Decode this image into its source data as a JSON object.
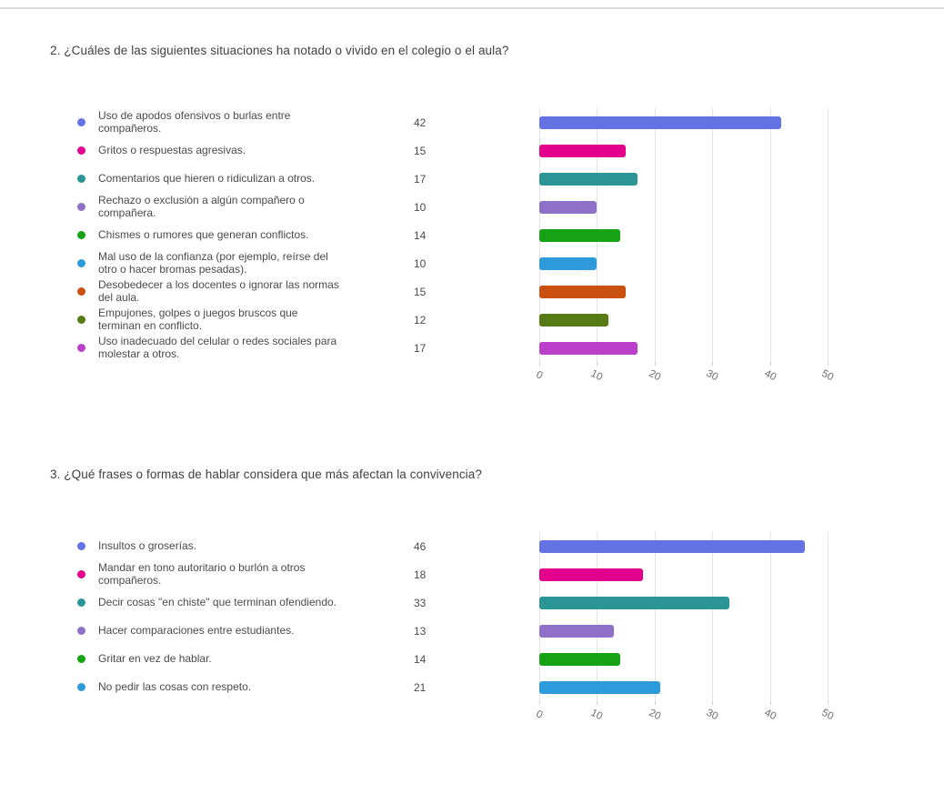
{
  "page": {
    "background": "#ffffff",
    "top_divider_color": "#dadada"
  },
  "chart_data": [
    {
      "type": "bar",
      "orientation": "horizontal",
      "question": "2. ¿Cuáles de las siguientes situaciones ha notado o vivido en el colegio o el aula?",
      "legend_position": "left",
      "grid": true,
      "x_ticks": [
        0,
        10,
        20,
        30,
        40,
        50
      ],
      "xlim": [
        0,
        55
      ],
      "items": [
        {
          "label": "Uso de apodos ofensivos o burlas entre compañeros.",
          "value": 42,
          "color": "#6373E3"
        },
        {
          "label": "Gritos o respuestas agresivas.",
          "value": 15,
          "color": "#E3008C"
        },
        {
          "label": "Comentarios que hieren o ridiculizan a otros.",
          "value": 17,
          "color": "#2A9594"
        },
        {
          "label": "Rechazo o exclusión a algún compañero o compañera.",
          "value": 10,
          "color": "#8E70C8"
        },
        {
          "label": "Chismes o rumores que generan conflictos.",
          "value": 14,
          "color": "#16A316"
        },
        {
          "label": "Mal uso de la confianza (por ejemplo, reírse del otro o hacer bromas pesadas).",
          "value": 10,
          "color": "#2D9BDB"
        },
        {
          "label": "Desobedecer a los docentes o ignorar las normas del aula.",
          "value": 15,
          "color": "#CA5010"
        },
        {
          "label": "Empujones, golpes o juegos bruscos que terminan en conflicto.",
          "value": 12,
          "color": "#567B14"
        },
        {
          "label": "Uso inadecuado del celular o redes sociales para molestar a otros.",
          "value": 17,
          "color": "#BA3FC9"
        }
      ]
    },
    {
      "type": "bar",
      "orientation": "horizontal",
      "question": "3. ¿Qué frases o formas de hablar considera que más afectan la convivencia?",
      "legend_position": "left",
      "grid": true,
      "x_ticks": [
        0,
        10,
        20,
        30,
        40,
        50
      ],
      "xlim": [
        0,
        55
      ],
      "items": [
        {
          "label": "Insultos o groserías.",
          "value": 46,
          "color": "#6373E3"
        },
        {
          "label": "Mandar en tono autoritario o burlón a otros compañeros.",
          "value": 18,
          "color": "#E3008C"
        },
        {
          "label": "Decir cosas \"en chiste\" que terminan ofendiendo.",
          "value": 33,
          "color": "#2A9594"
        },
        {
          "label": "Hacer comparaciones entre estudiantes.",
          "value": 13,
          "color": "#8E70C8"
        },
        {
          "label": "Gritar en vez de hablar.",
          "value": 14,
          "color": "#16A316"
        },
        {
          "label": "No pedir las cosas con respeto.",
          "value": 21,
          "color": "#2D9BDB"
        }
      ]
    }
  ]
}
